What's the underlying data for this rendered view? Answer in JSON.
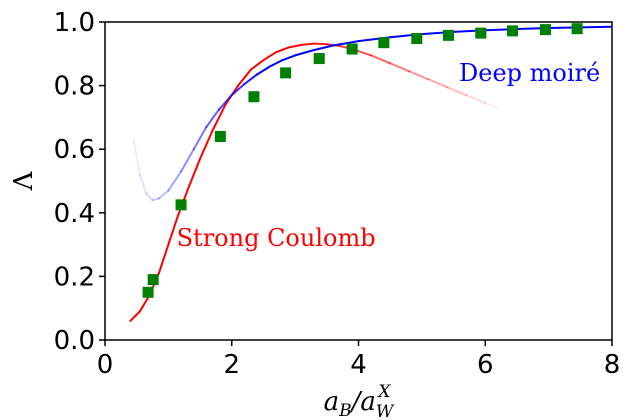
{
  "chart_data": {
    "type": "line",
    "xlabel": "a_B / a_W^X",
    "ylabel": "Λ",
    "xlim": [
      0,
      8
    ],
    "ylim": [
      0.0,
      1.0
    ],
    "xticks": [
      0,
      2,
      4,
      6,
      8
    ],
    "xtick_labels": [
      "0",
      "2",
      "4",
      "6",
      "8"
    ],
    "yticks": [
      0.0,
      0.2,
      0.4,
      0.6,
      0.8,
      1.0
    ],
    "ytick_labels": [
      "0.0",
      "0.2",
      "0.4",
      "0.6",
      "0.8",
      "1.0"
    ],
    "grid": false,
    "annotations": [
      {
        "text": "Strong Coulomb",
        "x": 2.7,
        "y": 0.32,
        "color": "#ff0000"
      },
      {
        "text": "Deep moiré",
        "x": 6.7,
        "y": 0.84,
        "color": "#0000ff"
      }
    ],
    "series": [
      {
        "style": "line",
        "color": "#ff0000",
        "fade_after_x": 3.0,
        "x": [
          0.4,
          0.55,
          0.7,
          0.85,
          1.0,
          1.15,
          1.3,
          1.5,
          1.7,
          1.9,
          2.1,
          2.3,
          2.5,
          2.7,
          2.9,
          3.1,
          3.3,
          3.5,
          3.7,
          3.9,
          4.2,
          4.5,
          4.8,
          5.1,
          5.4,
          5.7,
          6.0,
          6.2
        ],
        "y": [
          0.06,
          0.09,
          0.14,
          0.21,
          0.3,
          0.39,
          0.47,
          0.57,
          0.66,
          0.74,
          0.8,
          0.85,
          0.88,
          0.905,
          0.92,
          0.928,
          0.932,
          0.93,
          0.925,
          0.915,
          0.895,
          0.87,
          0.845,
          0.82,
          0.795,
          0.77,
          0.745,
          0.73
        ]
      },
      {
        "style": "line",
        "color": "#0000ff",
        "fade_before_x": 2.5,
        "x": [
          0.45,
          0.55,
          0.65,
          0.75,
          0.85,
          1.0,
          1.2,
          1.4,
          1.6,
          1.8,
          2.0,
          2.2,
          2.4,
          2.6,
          2.8,
          3.0,
          3.3,
          3.6,
          4.0,
          4.5,
          5.0,
          5.5,
          6.0,
          6.5,
          7.0,
          7.5,
          8.0
        ],
        "y": [
          0.63,
          0.52,
          0.46,
          0.44,
          0.445,
          0.47,
          0.53,
          0.6,
          0.67,
          0.725,
          0.77,
          0.805,
          0.835,
          0.86,
          0.88,
          0.895,
          0.912,
          0.926,
          0.94,
          0.952,
          0.962,
          0.969,
          0.974,
          0.978,
          0.981,
          0.983,
          0.985
        ]
      },
      {
        "style": "markers",
        "marker": "square",
        "color": "#008000",
        "x": [
          0.68,
          0.76,
          1.2,
          1.82,
          2.35,
          2.85,
          3.38,
          3.9,
          4.4,
          4.92,
          5.42,
          5.93,
          6.43,
          6.95,
          7.45
        ],
        "y": [
          0.15,
          0.19,
          0.425,
          0.64,
          0.765,
          0.84,
          0.885,
          0.915,
          0.935,
          0.948,
          0.958,
          0.965,
          0.972,
          0.976,
          0.979
        ]
      }
    ]
  }
}
